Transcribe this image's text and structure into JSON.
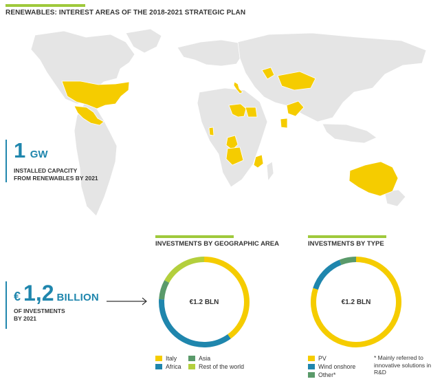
{
  "header": {
    "title": "RENEWABLES: INTEREST AREAS OF THE 2018-2021 STRATEGIC PLAN"
  },
  "capacity": {
    "value": "1",
    "unit": "GW",
    "caption_line1": "INSTALLED CAPACITY",
    "caption_line2": "FROM RENEWABLES BY 2021"
  },
  "investments": {
    "currency_symbol": "€",
    "value": "1,2",
    "unit": "BILLION",
    "caption_line1": "OF INVESTMENTS",
    "caption_line2": "BY 2021"
  },
  "colors": {
    "yellow": "#f5cc00",
    "blue": "#1f86ad",
    "green": "#5a9a6a",
    "light_green": "#b3cf3d",
    "land_gray": "#e5e5e5",
    "accent_green": "#9fc93c"
  },
  "chart_data": [
    {
      "type": "pie",
      "title": "INVESTMENTS BY GEOGRAPHIC AREA",
      "center_label": "€1.2 BLN",
      "slices": [
        {
          "label": "Italy",
          "value": 40,
          "color": "#f5cc00"
        },
        {
          "label": "Africa",
          "value": 36,
          "color": "#1f86ad"
        },
        {
          "label": "Asia",
          "value": 7,
          "color": "#5a9a6a"
        },
        {
          "label": "Rest of the world",
          "value": 17,
          "color": "#b3cf3d"
        }
      ],
      "legend_placement": "bottom"
    },
    {
      "type": "pie",
      "title": "INVESTMENTS BY TYPE",
      "center_label": "€1.2 BLN",
      "slices": [
        {
          "label": "PV",
          "value": 80,
          "color": "#f5cc00"
        },
        {
          "label": "Wind onshore",
          "value": 14,
          "color": "#1f86ad"
        },
        {
          "label": "Other*",
          "value": 6,
          "color": "#5a9a6a"
        }
      ],
      "legend_placement": "bottom",
      "footnote": "* Mainly referred to innovative solutions in R&D"
    }
  ]
}
